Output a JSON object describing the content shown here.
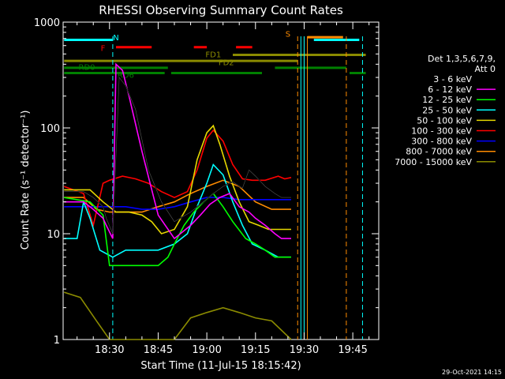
{
  "chart_data": {
    "type": "line",
    "title": "RHESSI Observing Summary Count Rates",
    "xlabel": "Start Time (11-Jul-15 18:15:42)",
    "ylabel": "Count Rate (s⁻¹ detector⁻¹)",
    "yscale": "log",
    "ylim": [
      1,
      1000
    ],
    "xlim_minutes": [
      18.26,
      19.88
    ],
    "x_ticks": [
      "18:30",
      "18:45",
      "19:00",
      "19:15",
      "19:30",
      "19:45"
    ],
    "y_ticks": [
      "1",
      "10",
      "100",
      "1000"
    ],
    "legend_header": [
      "Det 1,3,5,6,7,9,",
      "Att 0"
    ],
    "legend_position": "right",
    "timestamp": "29-Oct-2021 14:15",
    "series": [
      {
        "name": "3 - 6 keV",
        "color": "#000000",
        "x": [
          "18:16",
          "18:22",
          "18:25",
          "18:28",
          "18:29",
          "18:31",
          "18:33",
          "18:35",
          "18:38",
          "18:42",
          "18:46",
          "18:50",
          "18:55",
          "18:58",
          "19:02",
          "19:05",
          "19:08",
          "19:11",
          "19:13",
          "19:15",
          "19:18",
          "19:21",
          "19:23",
          "19:26"
        ],
        "y": [
          25,
          25,
          22,
          18,
          14,
          10,
          300,
          250,
          150,
          40,
          20,
          13,
          16,
          19,
          24,
          28,
          31,
          27,
          40,
          35,
          28,
          24,
          22,
          22
        ]
      },
      {
        "name": "6 - 12 keV",
        "color": "#ff00ff",
        "x": [
          "18:16",
          "18:22",
          "18:25",
          "18:28",
          "18:29",
          "18:31",
          "18:32",
          "18:34",
          "18:36",
          "18:40",
          "18:45",
          "18:50",
          "18:55",
          "18:58",
          "19:01",
          "19:04",
          "19:07",
          "19:10",
          "19:13",
          "19:15",
          "19:18",
          "19:21",
          "19:23",
          "19:26"
        ],
        "y": [
          20,
          20,
          17,
          14,
          12,
          9,
          400,
          350,
          200,
          60,
          15,
          9,
          12,
          15,
          19,
          22,
          24,
          18,
          16,
          14,
          12,
          10,
          9,
          9
        ]
      },
      {
        "name": "12 - 25 keV",
        "color": "#00ff00",
        "x": [
          "18:16",
          "18:24",
          "18:28",
          "18:30",
          "18:35",
          "18:40",
          "18:45",
          "18:48",
          "18:50",
          "18:53",
          "18:56",
          "18:59",
          "19:02",
          "19:05",
          "19:08",
          "19:12",
          "19:15",
          "19:18",
          "19:21",
          "19:24",
          "19:26"
        ],
        "y": [
          22,
          20,
          15,
          5,
          5,
          5,
          5,
          6,
          8,
          12,
          16,
          20,
          24,
          18,
          13,
          9,
          8,
          7,
          6,
          6,
          6
        ]
      },
      {
        "name": "25 - 50 keV",
        "color": "#00ffff",
        "x": [
          "18:16",
          "18:20",
          "18:22",
          "18:24",
          "18:27",
          "18:31",
          "18:35",
          "18:40",
          "18:45",
          "18:50",
          "18:54",
          "18:57",
          "19:00",
          "19:02",
          "19:05",
          "19:08",
          "19:11",
          "19:14",
          "19:18",
          "19:22",
          "19:26"
        ],
        "y": [
          9,
          9,
          20,
          14,
          7,
          6,
          7,
          7,
          7,
          8,
          10,
          18,
          30,
          45,
          36,
          20,
          12,
          8,
          7,
          6,
          6
        ]
      },
      {
        "name": "50 - 100 keV",
        "color": "#e6d700",
        "x": [
          "18:16",
          "18:24",
          "18:28",
          "18:32",
          "18:36",
          "18:40",
          "18:43",
          "18:46",
          "18:50",
          "18:54",
          "18:57",
          "19:00",
          "19:02",
          "19:04",
          "19:07",
          "19:10",
          "19:13",
          "19:16",
          "19:19",
          "19:22",
          "19:26"
        ],
        "y": [
          26,
          26,
          20,
          16,
          16,
          15,
          13,
          10,
          11,
          18,
          50,
          90,
          105,
          70,
          35,
          20,
          13,
          12,
          11,
          11,
          11
        ]
      },
      {
        "name": "100 - 300 keV",
        "color": "#ff0000",
        "x": [
          "18:16",
          "18:22",
          "18:25",
          "18:28",
          "18:30",
          "18:34",
          "18:38",
          "18:42",
          "18:46",
          "18:50",
          "18:54",
          "18:57",
          "19:00",
          "19:02",
          "19:05",
          "19:08",
          "19:11",
          "19:14",
          "19:18",
          "19:22",
          "19:24",
          "19:26"
        ],
        "y": [
          28,
          24,
          12,
          30,
          32,
          35,
          33,
          30,
          25,
          22,
          25,
          40,
          80,
          95,
          75,
          45,
          33,
          32,
          32,
          35,
          33,
          34
        ]
      },
      {
        "name": "300 - 800 keV",
        "color": "#0000ff",
        "x": [
          "18:16",
          "18:22",
          "18:26",
          "18:30",
          "18:35",
          "18:40",
          "18:45",
          "18:50",
          "18:55",
          "19:00",
          "19:05",
          "19:10",
          "19:15",
          "19:20",
          "19:26"
        ],
        "y": [
          18,
          18,
          18,
          18,
          18,
          17,
          17,
          18,
          20,
          22,
          22,
          21,
          21,
          21,
          21
        ]
      },
      {
        "name": "800 - 7000 keV",
        "color": "#ff8c00",
        "x": [
          "18:16",
          "18:22",
          "18:26",
          "18:30",
          "18:35",
          "18:40",
          "18:45",
          "18:50",
          "18:55",
          "19:00",
          "19:05",
          "19:10",
          "19:15",
          "19:20",
          "19:26"
        ],
        "y": [
          22,
          22,
          17,
          16,
          16,
          16,
          18,
          20,
          24,
          28,
          32,
          28,
          20,
          17,
          17
        ]
      },
      {
        "name": "7000 - 15000 keV",
        "color": "#8b8b00",
        "x": [
          "18:16",
          "18:21",
          "18:26",
          "18:30",
          "18:35",
          "18:40",
          "18:45",
          "18:50",
          "18:55",
          "19:00",
          "19:05",
          "19:10",
          "19:15",
          "19:20",
          "19:26"
        ],
        "y": [
          2.8,
          2.5,
          1.5,
          1.0,
          1.0,
          1.0,
          1.0,
          1.0,
          1.6,
          1.8,
          2.0,
          1.8,
          1.6,
          1.5,
          1.0
        ]
      }
    ],
    "flag_bars": [
      {
        "label": "",
        "color": "#00ffff",
        "y": 680,
        "segments": [
          [
            "18:16",
            "18:31"
          ],
          [
            "19:33",
            "19:47"
          ]
        ]
      },
      {
        "label": "N",
        "color": "#00ffff",
        "y": 680,
        "segments": []
      },
      {
        "label": "F",
        "color": "#ff0000",
        "y": 580,
        "segments": [
          [
            "18:32",
            "18:43"
          ],
          [
            "18:56",
            "19:00"
          ],
          [
            "19:09",
            "19:14"
          ]
        ]
      },
      {
        "label": "S",
        "color": "#ff8c00",
        "y": 720,
        "segments": [
          [
            "19:31",
            "19:42"
          ]
        ]
      },
      {
        "label": "FD1",
        "color": "#8b8b00",
        "y": 490,
        "segments": [
          [
            "19:08",
            "19:49"
          ]
        ]
      },
      {
        "label": "FD2",
        "color": "#8b8b00",
        "y": 430,
        "segments": [
          [
            "18:16",
            "19:28"
          ]
        ]
      },
      {
        "label": "RD0",
        "color": "#008000",
        "y": 370,
        "segments": [
          [
            "18:16",
            "18:48"
          ],
          [
            "19:21",
            "19:43"
          ]
        ]
      },
      {
        "label": "RD6",
        "color": "#008000",
        "y": 330,
        "segments": [
          [
            "18:16",
            "18:47"
          ],
          [
            "18:49",
            "19:17"
          ],
          [
            "19:44",
            "19:49"
          ]
        ]
      }
    ],
    "vertical_lines": [
      {
        "color": "#00ffff",
        "style": "dashed",
        "x": [
          "18:31",
          "19:48"
        ]
      },
      {
        "color": "#ff8c00",
        "style": "dashed",
        "x": [
          "19:28",
          "19:43"
        ]
      },
      {
        "color": "#ff8c00",
        "style": "solid",
        "x": [
          "19:30",
          "19:31"
        ]
      },
      {
        "color": "#00ffff",
        "style": "solid",
        "x": [
          "19:29",
          "19:30"
        ]
      }
    ]
  }
}
